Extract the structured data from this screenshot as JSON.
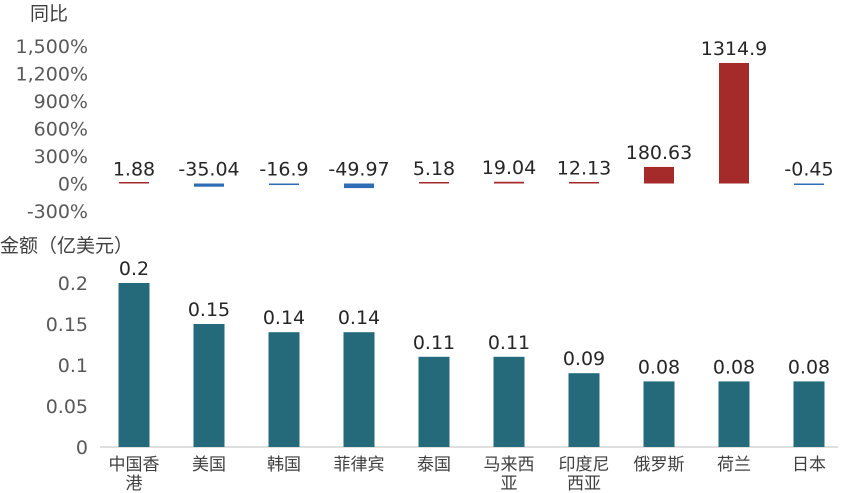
{
  "chart_data": [
    {
      "type": "bar",
      "ylabel": "同比",
      "categories": [
        "中国香港",
        "美国",
        "韩国",
        "菲律宾",
        "泰国",
        "马来西亚",
        "印度尼西亚",
        "俄罗斯",
        "荷兰",
        "日本"
      ],
      "values": [
        1.88,
        -35.04,
        -16.9,
        -49.97,
        5.18,
        19.04,
        12.13,
        180.63,
        1314.9,
        -0.45
      ],
      "value_labels": [
        "1.88",
        "-35.04",
        "-16.9",
        "-49.97",
        "5.18",
        "19.04",
        "12.13",
        "180.63",
        "1314.9",
        "-0.45"
      ],
      "yticks": [
        "1,500%",
        "1,200%",
        "900%",
        "600%",
        "300%",
        "0%",
        "-300%"
      ],
      "ytick_values": [
        1500,
        1200,
        900,
        600,
        300,
        0,
        -300
      ],
      "ylim": [
        -300,
        1500
      ],
      "colors": {
        "positive": "#a52a2a",
        "negative": "#2e6db3"
      }
    },
    {
      "type": "bar",
      "ylabel": "金额（亿美元）",
      "categories": [
        "中国香港",
        "美国",
        "韩国",
        "菲律宾",
        "泰国",
        "马来西亚",
        "印度尼西亚",
        "俄罗斯",
        "荷兰",
        "日本"
      ],
      "category_lines": [
        [
          "中国香",
          "港"
        ],
        [
          "美国"
        ],
        [
          "韩国"
        ],
        [
          "菲律宾"
        ],
        [
          "泰国"
        ],
        [
          "马来西",
          "亚"
        ],
        [
          "印度尼",
          "西亚"
        ],
        [
          "俄罗斯"
        ],
        [
          "荷兰"
        ],
        [
          "日本"
        ]
      ],
      "values": [
        0.2,
        0.15,
        0.14,
        0.14,
        0.11,
        0.11,
        0.09,
        0.08,
        0.08,
        0.08
      ],
      "value_labels": [
        "0.2",
        "0.15",
        "0.14",
        "0.14",
        "0.11",
        "0.11",
        "0.09",
        "0.08",
        "0.08",
        "0.08"
      ],
      "yticks": [
        "0.2",
        "0.15",
        "0.1",
        "0.05",
        "0"
      ],
      "ytick_values": [
        0.2,
        0.15,
        0.1,
        0.05,
        0
      ],
      "ylim": [
        0,
        0.2
      ],
      "colors": {
        "bar": "#246a7b"
      }
    }
  ]
}
